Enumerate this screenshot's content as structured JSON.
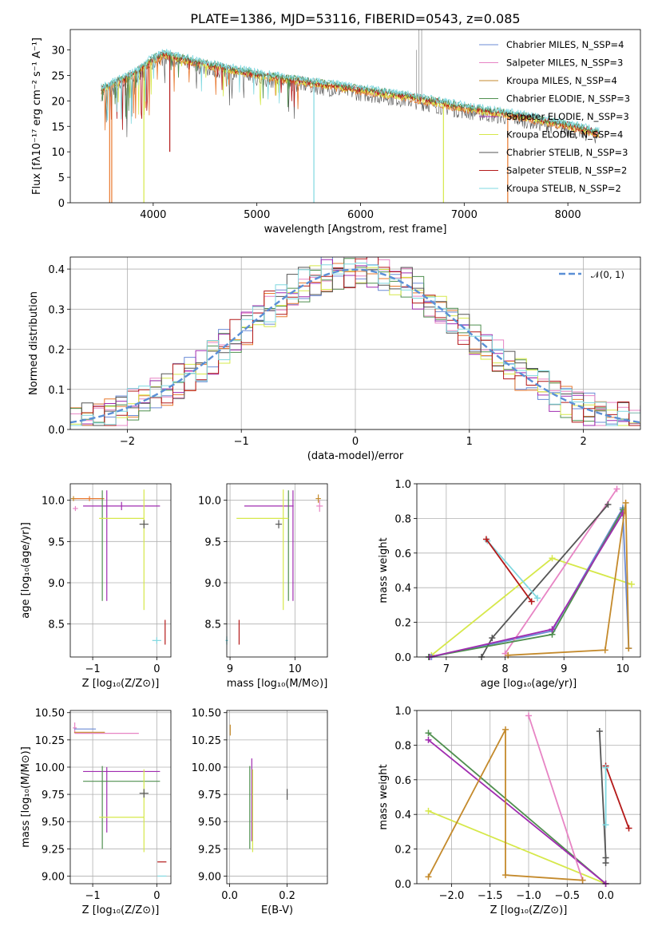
{
  "figure": {
    "title": "PLATE=1386, MJD=53116, FIBERID=0543, z=0.085"
  },
  "colors": {
    "Chabrier MILES": "#6b8bd6",
    "Salpeter MILES": "#e784c4",
    "Kroupa MILES": "#c48a2c",
    "Chabrier ELODIE": "#4f8f4f",
    "Salpeter ELODIE": "#a02cb0",
    "Kroupa ELODIE": "#d6e84a",
    "Chabrier STELIB": "#555555",
    "Salpeter STELIB": "#b41919",
    "Kroupa STELIB": "#7fd8e0",
    "extra orange": "#e8782e",
    "gaussian": "#5a8fd6"
  },
  "chart_data": [
    {
      "id": "spectrum",
      "type": "line",
      "title": "PLATE=1386, MJD=53116, FIBERID=0543, z=0.085",
      "xlabel": "wavelength [Angstrom, rest frame]",
      "ylabel": "Flux [fλ10⁻¹⁷ erg cm⁻² s⁻¹ A⁻¹]",
      "xlim": [
        3200,
        8700
      ],
      "ylim": [
        0,
        34
      ],
      "xticks": [
        "4000",
        "5000",
        "6000",
        "7000",
        "8000"
      ],
      "yticks": [
        "0",
        "5",
        "10",
        "15",
        "20",
        "25",
        "30"
      ],
      "grid": false,
      "legend_position": "upper right",
      "legend": [
        "Chabrier MILES, N_SSP=4",
        "Salpeter MILES, N_SSP=3",
        "Kroupa MILES, N_SSP=4",
        "Chabrier ELODIE, N_SSP=3",
        "Salpeter ELODIE, N_SSP=3",
        "Kroupa ELODIE, N_SSP=4",
        "Chabrier STELIB, N_SSP=3",
        "Salpeter STELIB, N_SSP=2",
        "Kroupa STELIB, N_SSP=2"
      ],
      "continuum_x": [
        3500,
        3800,
        4000,
        4100,
        4500,
        5000,
        5500,
        6000,
        6500,
        7000,
        7500,
        8000,
        8300
      ],
      "continuum_y": [
        22,
        25,
        28,
        29,
        27,
        25,
        23.5,
        22,
        20.5,
        18.5,
        17,
        15,
        13.5
      ],
      "absorption_lines": [
        {
          "x": 3580,
          "depth_to": 0
        },
        {
          "x": 3600,
          "depth_to": 0
        },
        {
          "x": 3910,
          "depth_to": 0
        },
        {
          "x": 4160,
          "depth_to": 10
        },
        {
          "x": 5550,
          "depth_to": 0
        },
        {
          "x": 6800,
          "depth_to": 0
        },
        {
          "x": 7420,
          "depth_to": 0
        }
      ],
      "emission_lines": [
        {
          "x": 6563,
          "height": 34
        },
        {
          "x": 6590,
          "height": 34
        },
        {
          "x": 6540,
          "height": 30
        }
      ]
    },
    {
      "id": "residuals",
      "type": "line",
      "xlabel": "(data-model)/error",
      "ylabel": "Normed distribution",
      "xlim": [
        -2.5,
        2.5
      ],
      "ylim": [
        0,
        0.43
      ],
      "xticks": [
        "−2",
        "−1",
        "0",
        "1",
        "2"
      ],
      "yticks": [
        "0.0",
        "0.1",
        "0.2",
        "0.3",
        "0.4"
      ],
      "grid": true,
      "legend_position": "upper right",
      "legend": [
        "𝒩(0, 1)"
      ],
      "gaussian": {
        "mu": 0,
        "sigma": 1
      }
    },
    {
      "id": "age_vs_Z",
      "type": "scatter",
      "xlabel": "Z [log₁₀(Z/Z⊙)]",
      "ylabel": "age  [log₁₀(age/yr)]",
      "xlim": [
        -1.35,
        0.22
      ],
      "ylim": [
        8.1,
        10.2
      ],
      "xticks": [
        "−1",
        "0"
      ],
      "yticks": [
        "8.5",
        "9.0",
        "9.5",
        "10.0"
      ],
      "grid": true,
      "points": [
        {
          "series": "Kroupa MILES",
          "x": -1.3,
          "y": 10.02,
          "xerr": 0.04,
          "yerr": 0.03
        },
        {
          "series": "Salpeter MILES",
          "x": -1.27,
          "y": 9.9,
          "xerr": 0.04,
          "yerr": 0.03
        },
        {
          "series": "extra orange",
          "x": -1.05,
          "y": 10.02,
          "xerr": 0.23,
          "yerr": 0.03
        },
        {
          "series": "Salpeter ELODIE",
          "x": -0.55,
          "y": 9.93,
          "xerr": 0.6,
          "yerr": 0.05
        },
        {
          "series": "Salpeter ELODIE",
          "x": -0.78,
          "y": 9.45,
          "xerr": 0.0,
          "yerr": 0.67
        },
        {
          "series": "Chabrier ELODIE",
          "x": -0.85,
          "y": 9.45,
          "xerr": 0.0,
          "yerr": 0.67
        },
        {
          "series": "Kroupa ELODIE",
          "x": -0.55,
          "y": 9.78,
          "xerr": 0.35,
          "yerr": 0.0
        },
        {
          "series": "Kroupa ELODIE",
          "x": -0.2,
          "y": 9.4,
          "xerr": 0.0,
          "yerr": 0.73
        },
        {
          "series": "Chabrier STELIB",
          "x": -0.2,
          "y": 9.71,
          "xerr": 0.07,
          "yerr": 0.05
        },
        {
          "series": "Salpeter STELIB",
          "x": 0.13,
          "y": 8.4,
          "xerr": 0.0,
          "yerr": 0.15
        },
        {
          "series": "Kroupa STELIB",
          "x": 0.0,
          "y": 8.3,
          "xerr": 0.07,
          "yerr": 0.04
        }
      ]
    },
    {
      "id": "age_vs_mass",
      "type": "scatter",
      "xlabel": "mass [log₁₀(M/M⊙)]",
      "ylabel": "",
      "xlim": [
        8.95,
        10.5
      ],
      "ylim": [
        8.1,
        10.2
      ],
      "xticks": [
        "9",
        "10"
      ],
      "yticks": [
        "8.5",
        "9.0",
        "9.5",
        "10.0"
      ],
      "grid": true,
      "points": [
        {
          "series": "Salpeter MILES",
          "x": 10.38,
          "y": 9.93,
          "xerr": 0.05,
          "yerr": 0.07
        },
        {
          "series": "Kroupa MILES",
          "x": 10.36,
          "y": 10.02,
          "xerr": 0.04,
          "yerr": 0.05
        },
        {
          "series": "Salpeter ELODIE",
          "x": 9.6,
          "y": 9.93,
          "xerr": 0.38,
          "yerr": 0.0
        },
        {
          "series": "Chabrier ELODIE",
          "x": 9.9,
          "y": 9.45,
          "xerr": 0.0,
          "yerr": 0.67
        },
        {
          "series": "Salpeter ELODIE",
          "x": 9.97,
          "y": 9.45,
          "xerr": 0.0,
          "yerr": 0.67
        },
        {
          "series": "Kroupa ELODIE",
          "x": 9.5,
          "y": 9.78,
          "xerr": 0.4,
          "yerr": 0.0
        },
        {
          "series": "Kroupa ELODIE",
          "x": 9.82,
          "y": 9.4,
          "xerr": 0.0,
          "yerr": 0.73
        },
        {
          "series": "Chabrier STELIB",
          "x": 9.75,
          "y": 9.71,
          "xerr": 0.05,
          "yerr": 0.05
        },
        {
          "series": "Salpeter STELIB",
          "x": 9.14,
          "y": 8.4,
          "xerr": 0.0,
          "yerr": 0.15
        },
        {
          "series": "Kroupa STELIB",
          "x": 8.95,
          "y": 8.3,
          "xerr": 0.02,
          "yerr": 0.05
        }
      ]
    },
    {
      "id": "weight_vs_age",
      "type": "line",
      "xlabel": "age  [log₁₀(age/yr)]",
      "ylabel": "mass weight",
      "xlim": [
        6.5,
        10.3
      ],
      "ylim": [
        0,
        1.0
      ],
      "xticks": [
        "7",
        "8",
        "9",
        "10"
      ],
      "yticks": [
        "0.0",
        "0.2",
        "0.4",
        "0.6",
        "0.8",
        "1.0"
      ],
      "grid": true,
      "series": [
        {
          "key": "Kroupa ELODIE",
          "x": [
            6.75,
            8.8,
            10.15
          ],
          "y": [
            0.01,
            0.57,
            0.42
          ]
        },
        {
          "key": "Chabrier MILES",
          "x": [
            6.75,
            8.8,
            10.0,
            10.1
          ],
          "y": [
            0.0,
            0.15,
            0.86,
            0.05
          ]
        },
        {
          "key": "Salpeter MILES",
          "x": [
            8.0,
            9.9
          ],
          "y": [
            0.02,
            0.97
          ]
        },
        {
          "key": "Chabrier STELIB",
          "x": [
            7.6,
            7.78,
            9.75
          ],
          "y": [
            0.0,
            0.11,
            0.88
          ]
        },
        {
          "key": "Kroupa STELIB",
          "x": [
            7.7,
            8.55
          ],
          "y": [
            0.67,
            0.34
          ]
        },
        {
          "key": "Salpeter STELIB",
          "x": [
            7.68,
            8.45
          ],
          "y": [
            0.68,
            0.32
          ]
        },
        {
          "key": "Chabrier ELODIE",
          "x": [
            6.7,
            8.8,
            10.0
          ],
          "y": [
            0.0,
            0.13,
            0.85
          ]
        },
        {
          "key": "Salpeter ELODIE",
          "x": [
            6.72,
            8.8,
            10.0
          ],
          "y": [
            0.0,
            0.16,
            0.83
          ]
        },
        {
          "key": "Kroupa MILES",
          "x": [
            8.05,
            9.7,
            10.05,
            10.1
          ],
          "y": [
            0.01,
            0.04,
            0.89,
            0.05
          ]
        }
      ]
    },
    {
      "id": "mass_vs_Z",
      "type": "scatter",
      "xlabel": "Z [log₁₀(Z/Z⊙)]",
      "ylabel": "mass [log₁₀(M/M⊙)]",
      "xlim": [
        -1.35,
        0.22
      ],
      "ylim": [
        8.93,
        10.52
      ],
      "xticks": [
        "−1",
        "0"
      ],
      "yticks": [
        "9.00",
        "9.25",
        "9.50",
        "9.75",
        "10.00",
        "10.25",
        "10.50"
      ],
      "grid": true,
      "points": [
        {
          "series": "Salpeter MILES",
          "x": -1.28,
          "y": 10.36,
          "xerr": 0.03,
          "yerr": 0.05
        },
        {
          "series": "Chabrier MILES",
          "x": -1.12,
          "y": 10.35,
          "xerr": 0.17,
          "yerr": 0.0
        },
        {
          "series": "Salpeter MILES",
          "x": -0.78,
          "y": 10.31,
          "xerr": 0.5,
          "yerr": 0.0
        },
        {
          "series": "Kroupa MILES",
          "x": -1.05,
          "y": 10.32,
          "xerr": 0.24,
          "yerr": 0.0
        },
        {
          "series": "Salpeter ELODIE",
          "x": -0.55,
          "y": 9.96,
          "xerr": 0.6,
          "yerr": 0.0
        },
        {
          "series": "Salpeter ELODIE",
          "x": -0.78,
          "y": 9.7,
          "xerr": 0.0,
          "yerr": 0.3
        },
        {
          "series": "Chabrier ELODIE",
          "x": -0.55,
          "y": 9.87,
          "xerr": 0.6,
          "yerr": 0.0
        },
        {
          "series": "Chabrier ELODIE",
          "x": -0.85,
          "y": 9.63,
          "xerr": 0.0,
          "yerr": 0.38
        },
        {
          "series": "Kroupa ELODIE",
          "x": -0.55,
          "y": 9.54,
          "xerr": 0.35,
          "yerr": 0.0
        },
        {
          "series": "Kroupa ELODIE",
          "x": -0.2,
          "y": 9.6,
          "xerr": 0.0,
          "yerr": 0.38
        },
        {
          "series": "Chabrier STELIB",
          "x": -0.2,
          "y": 9.76,
          "xerr": 0.07,
          "yerr": 0.04
        },
        {
          "series": "Salpeter STELIB",
          "x": 0.08,
          "y": 9.13,
          "xerr": 0.07,
          "yerr": 0.0
        },
        {
          "series": "Kroupa STELIB",
          "x": 0.08,
          "y": 9.0,
          "xerr": 0.07,
          "yerr": 0.0
        }
      ]
    },
    {
      "id": "mass_vs_EBV",
      "type": "scatter",
      "xlabel": "E(B-V)",
      "ylabel": "",
      "xlim": [
        -0.01,
        0.34
      ],
      "ylim": [
        8.93,
        10.52
      ],
      "xticks": [
        "0.0",
        "0.2"
      ],
      "yticks": [
        "9.00",
        "9.25",
        "9.50",
        "9.75",
        "10.00",
        "10.25",
        "10.50"
      ],
      "grid": true,
      "points": [
        {
          "series": "Kroupa MILES",
          "x": 0.002,
          "y": 10.34,
          "xerr": 0.0,
          "yerr": 0.05
        },
        {
          "series": "Chabrier ELODIE",
          "x": 0.07,
          "y": 9.63,
          "xerr": 0.0,
          "yerr": 0.38
        },
        {
          "series": "Salpeter ELODIE",
          "x": 0.077,
          "y": 9.7,
          "xerr": 0.0,
          "yerr": 0.38
        },
        {
          "series": "Kroupa ELODIE",
          "x": 0.08,
          "y": 9.6,
          "xerr": 0.0,
          "yerr": 0.38
        },
        {
          "series": "Chabrier STELIB",
          "x": 0.2,
          "y": 9.75,
          "xerr": 0.0,
          "yerr": 0.05
        }
      ]
    },
    {
      "id": "weight_vs_Z",
      "type": "line",
      "xlabel": "Z [log₁₀(Z/Z⊙)]",
      "ylabel": "mass weight",
      "xlim": [
        -2.45,
        0.45
      ],
      "ylim": [
        0,
        1.0
      ],
      "xticks": [
        "−2.0",
        "−1.5",
        "−1.0",
        "−0.5",
        "0.0"
      ],
      "yticks": [
        "0.0",
        "0.2",
        "0.4",
        "0.6",
        "0.8",
        "1.0"
      ],
      "grid": true,
      "series": [
        {
          "key": "Kroupa ELODIE",
          "x": [
            -2.3,
            0.0
          ],
          "y": [
            0.42,
            0.0
          ]
        },
        {
          "key": "Chabrier ELODIE",
          "x": [
            -2.3,
            0.0
          ],
          "y": [
            0.87,
            0.0
          ]
        },
        {
          "key": "Salpeter ELODIE",
          "x": [
            -2.3,
            0.0
          ],
          "y": [
            0.83,
            0.0
          ]
        },
        {
          "key": "Salpeter MILES",
          "x": [
            -1.0,
            -0.3
          ],
          "y": [
            0.97,
            0.02
          ]
        },
        {
          "key": "Kroupa MILES",
          "x": [
            -2.3,
            -1.3,
            -1.3,
            -0.3
          ],
          "y": [
            0.04,
            0.89,
            0.05,
            0.02
          ]
        },
        {
          "key": "Chabrier STELIB",
          "x": [
            -0.08,
            0.0,
            0.0
          ],
          "y": [
            0.88,
            0.15,
            0.12
          ]
        },
        {
          "key": "Salpeter STELIB",
          "x": [
            0.0,
            0.3
          ],
          "y": [
            0.68,
            0.32
          ]
        },
        {
          "key": "Kroupa STELIB",
          "x": [
            0.0,
            0.0
          ],
          "y": [
            0.67,
            0.34
          ]
        }
      ]
    }
  ]
}
